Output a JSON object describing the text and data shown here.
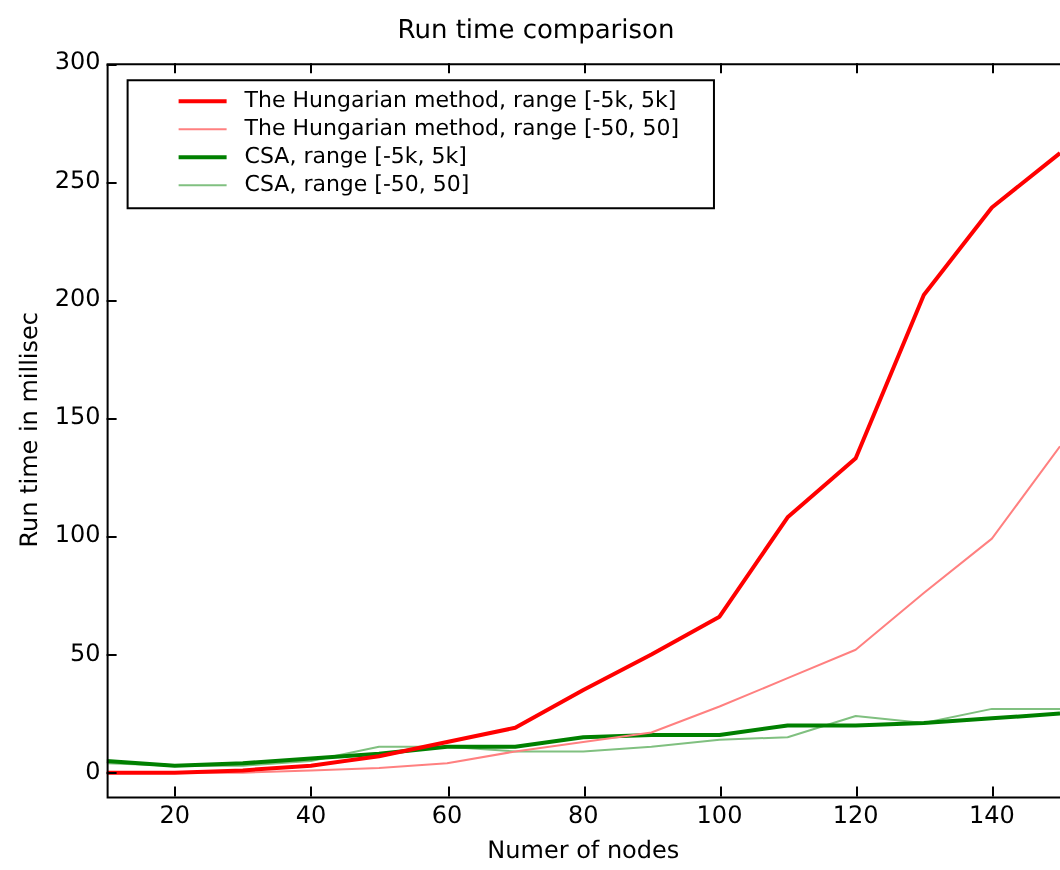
{
  "chart_data": {
    "type": "line",
    "title": "Run time comparison",
    "xlabel": "Numer of nodes",
    "ylabel": "Run time in millisec",
    "x": [
      10,
      20,
      30,
      40,
      50,
      60,
      70,
      80,
      90,
      100,
      110,
      120,
      130,
      140,
      150
    ],
    "series": [
      {
        "name": "The Hungarian method, range [-5k, 5k]",
        "color": "#ff0000",
        "values": [
          0,
          0,
          1,
          3,
          7,
          13,
          19,
          35,
          50,
          66,
          108,
          133,
          202,
          239,
          262
        ]
      },
      {
        "name": "The Hungarian method, range [-50, 50]",
        "color": "#ff8080",
        "values": [
          0,
          0,
          0,
          1,
          2,
          4,
          9,
          13,
          17,
          28,
          40,
          52,
          76,
          99,
          138
        ]
      },
      {
        "name": "CSA, range [-5k, 5k]",
        "color": "#008000",
        "values": [
          5,
          3,
          4,
          6,
          8,
          11,
          11,
          15,
          16,
          16,
          20,
          20,
          21,
          23,
          25
        ]
      },
      {
        "name": "CSA, range [-50, 50]",
        "color": "#80c080",
        "values": [
          4,
          3,
          3,
          5,
          11,
          11,
          9,
          9,
          11,
          14,
          15,
          24,
          21,
          27,
          27
        ]
      }
    ],
    "xlim": [
      10,
      150
    ],
    "ylim": [
      -10,
      300
    ],
    "xticks": [
      20,
      40,
      60,
      80,
      100,
      120,
      140
    ],
    "yticks": [
      0,
      50,
      100,
      150,
      200,
      250,
      300
    ],
    "grid": false,
    "legend": "top left",
    "marker": "none",
    "line_style": "solid"
  }
}
